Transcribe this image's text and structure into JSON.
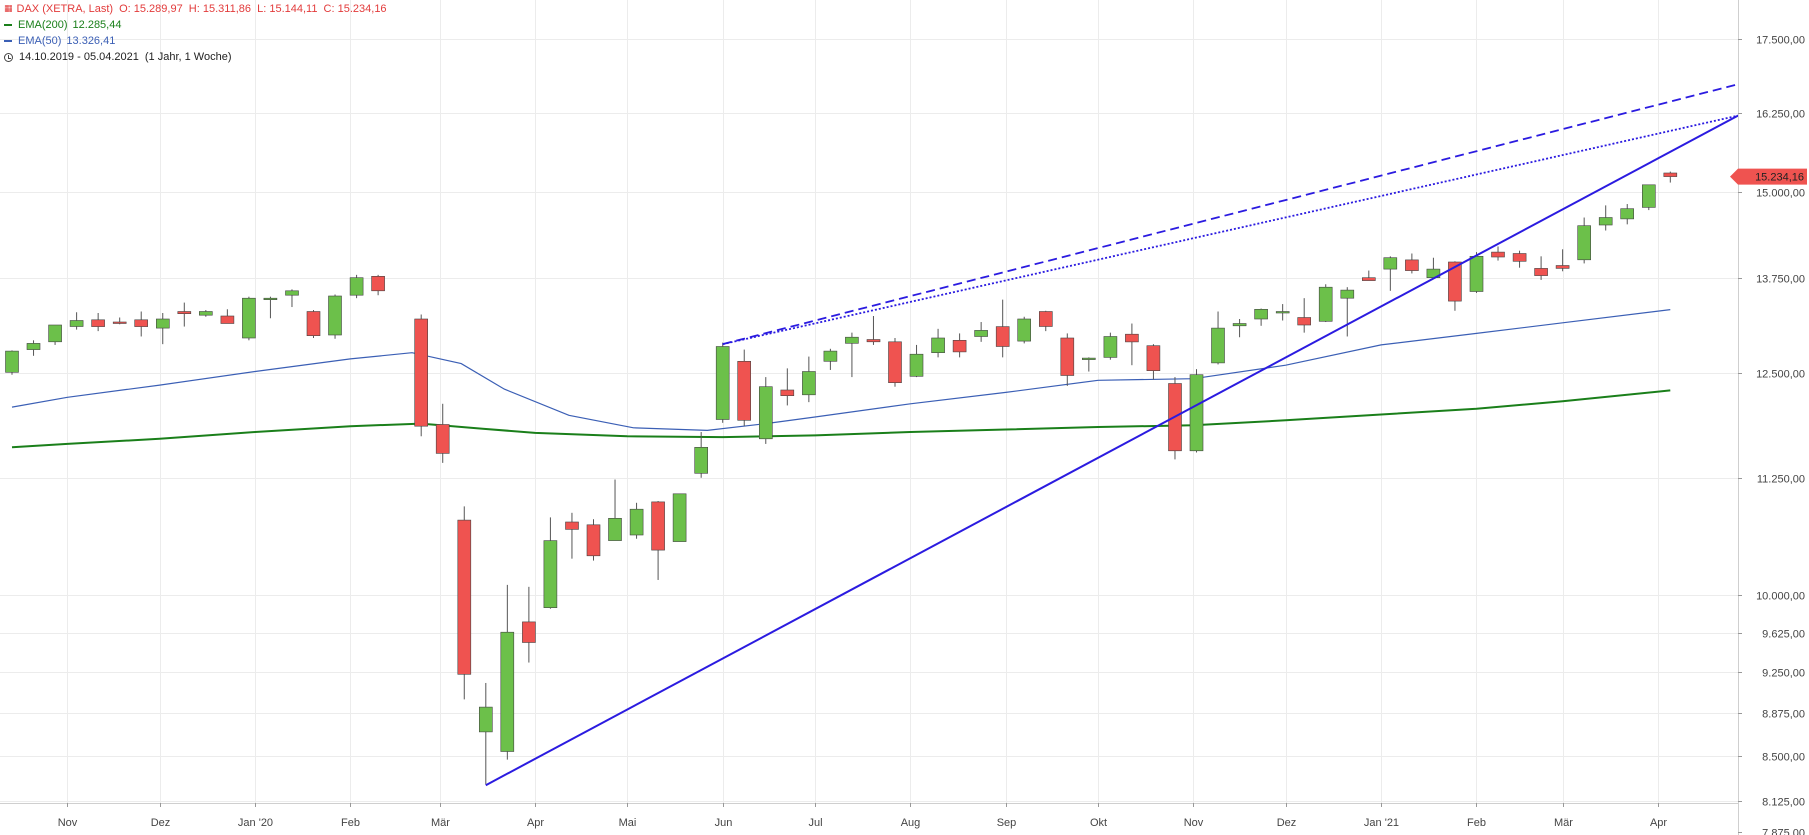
{
  "legend": {
    "main_label": "DAX (XETRA, Last)",
    "ohlc_text": "O: 15.289,97  H: 15.311,86  L: 15.144,11  C: 15.234,16",
    "ema200_label": "EMA(200)",
    "ema200_value": "12.285,44",
    "ema50_label": "EMA(50)",
    "ema50_value": "13.326,41",
    "range_text": "14.10.2019 - 05.04.2021",
    "range_note": "(1 Jahr, 1 Woche)"
  },
  "colors": {
    "up": "#6cc04a",
    "down": "#ef5350",
    "ema200": "#1a7f1a",
    "ema50": "#3b5fb5",
    "trend": "#2b1be0",
    "grid": "#ececec",
    "price_badge": "#ef5350"
  },
  "chart_data": {
    "type": "candlestick",
    "title": "DAX (XETRA, Last)",
    "price_scale": "log",
    "ylim": [
      7875,
      18200
    ],
    "y_ticks": [
      {
        "value": 17500,
        "label": "17.500,00"
      },
      {
        "value": 16250,
        "label": "16.250,00"
      },
      {
        "value": 15000,
        "label": "15.000,00"
      },
      {
        "value": 13750,
        "label": "13.750,00"
      },
      {
        "value": 12500,
        "label": "12.500,00"
      },
      {
        "value": 11250,
        "label": "11.250,00"
      },
      {
        "value": 10000,
        "label": "10.000,00"
      },
      {
        "value": 9625,
        "label": "9.625,00"
      },
      {
        "value": 9250,
        "label": "9.250,00"
      },
      {
        "value": 8875,
        "label": "8.875,00"
      },
      {
        "value": 8500,
        "label": "8.500,00"
      },
      {
        "value": 8125,
        "label": "8.125,00"
      },
      {
        "value": 7875,
        "label": "7.875,00"
      }
    ],
    "x_ticks": [
      {
        "date": "2019-11-01",
        "label": "Nov"
      },
      {
        "date": "2019-12-01",
        "label": "Dez"
      },
      {
        "date": "2020-01-01",
        "label": "Jan '20"
      },
      {
        "date": "2020-02-01",
        "label": "Feb"
      },
      {
        "date": "2020-03-01",
        "label": "Mär"
      },
      {
        "date": "2020-04-01",
        "label": "Apr"
      },
      {
        "date": "2020-05-01",
        "label": "Mai"
      },
      {
        "date": "2020-06-01",
        "label": "Jun"
      },
      {
        "date": "2020-07-01",
        "label": "Jul"
      },
      {
        "date": "2020-08-01",
        "label": "Aug"
      },
      {
        "date": "2020-09-01",
        "label": "Sep"
      },
      {
        "date": "2020-10-01",
        "label": "Okt"
      },
      {
        "date": "2020-11-01",
        "label": "Nov"
      },
      {
        "date": "2020-12-01",
        "label": "Dez"
      },
      {
        "date": "2021-01-01",
        "label": "Jan '21"
      },
      {
        "date": "2021-02-01",
        "label": "Feb"
      },
      {
        "date": "2021-03-01",
        "label": "Mär"
      },
      {
        "date": "2021-04-01",
        "label": "Apr"
      }
    ],
    "x_range": [
      "2019-10-14",
      "2021-04-27"
    ],
    "last_price_label": "15.234,16",
    "candles": [
      {
        "date": "2019-10-14",
        "o": 12510,
        "h": 12790,
        "l": 12480,
        "c": 12780
      },
      {
        "date": "2019-10-21",
        "o": 12800,
        "h": 12920,
        "l": 12720,
        "c": 12880
      },
      {
        "date": "2019-10-28",
        "o": 12900,
        "h": 13120,
        "l": 12860,
        "c": 13120
      },
      {
        "date": "2019-11-04",
        "o": 13100,
        "h": 13290,
        "l": 13060,
        "c": 13180
      },
      {
        "date": "2019-11-11",
        "o": 13190,
        "h": 13280,
        "l": 13040,
        "c": 13100
      },
      {
        "date": "2019-11-18",
        "o": 13160,
        "h": 13220,
        "l": 13130,
        "c": 13150
      },
      {
        "date": "2019-11-25",
        "o": 13190,
        "h": 13300,
        "l": 12970,
        "c": 13100
      },
      {
        "date": "2019-12-02",
        "o": 13080,
        "h": 13280,
        "l": 12870,
        "c": 13200
      },
      {
        "date": "2019-12-09",
        "o": 13300,
        "h": 13420,
        "l": 13100,
        "c": 13270
      },
      {
        "date": "2019-12-16",
        "o": 13250,
        "h": 13320,
        "l": 13230,
        "c": 13300
      },
      {
        "date": "2019-12-23",
        "o": 13240,
        "h": 13330,
        "l": 13150,
        "c": 13140
      },
      {
        "date": "2019-12-30",
        "o": 12950,
        "h": 13500,
        "l": 12920,
        "c": 13480
      },
      {
        "date": "2020-01-06",
        "o": 13470,
        "h": 13500,
        "l": 13210,
        "c": 13480
      },
      {
        "date": "2020-01-13",
        "o": 13520,
        "h": 13600,
        "l": 13360,
        "c": 13580
      },
      {
        "date": "2020-01-20",
        "o": 13300,
        "h": 13320,
        "l": 12950,
        "c": 12980
      },
      {
        "date": "2020-01-27",
        "o": 12990,
        "h": 13530,
        "l": 12940,
        "c": 13510
      },
      {
        "date": "2020-02-03",
        "o": 13520,
        "h": 13800,
        "l": 13480,
        "c": 13760
      },
      {
        "date": "2020-02-10",
        "o": 13780,
        "h": 13800,
        "l": 13520,
        "c": 13580
      },
      {
        "date": "2020-02-24",
        "o": 13200,
        "h": 13260,
        "l": 11730,
        "c": 11850
      },
      {
        "date": "2020-03-02",
        "o": 11870,
        "h": 12120,
        "l": 11420,
        "c": 11530
      },
      {
        "date": "2020-03-09",
        "o": 10780,
        "h": 10930,
        "l": 9000,
        "c": 9230
      },
      {
        "date": "2020-03-16",
        "o": 8710,
        "h": 9150,
        "l": 8260,
        "c": 8930
      },
      {
        "date": "2020-03-23",
        "o": 8540,
        "h": 10100,
        "l": 8470,
        "c": 9630
      },
      {
        "date": "2020-03-30",
        "o": 9730,
        "h": 10080,
        "l": 9340,
        "c": 9530
      },
      {
        "date": "2020-04-06",
        "o": 9870,
        "h": 10810,
        "l": 9860,
        "c": 10560
      },
      {
        "date": "2020-04-13",
        "o": 10760,
        "h": 10860,
        "l": 10370,
        "c": 10680
      },
      {
        "date": "2020-04-20",
        "o": 10730,
        "h": 10790,
        "l": 10350,
        "c": 10400
      },
      {
        "date": "2020-04-27",
        "o": 10560,
        "h": 11230,
        "l": 10570,
        "c": 10800
      },
      {
        "date": "2020-05-04",
        "o": 10620,
        "h": 10970,
        "l": 10580,
        "c": 10900
      },
      {
        "date": "2020-05-11",
        "o": 10980,
        "h": 10990,
        "l": 10150,
        "c": 10460
      },
      {
        "date": "2020-05-18",
        "o": 10550,
        "h": 11070,
        "l": 10550,
        "c": 11070
      },
      {
        "date": "2020-05-25",
        "o": 11300,
        "h": 11780,
        "l": 11250,
        "c": 11600
      },
      {
        "date": "2020-06-01",
        "o": 11930,
        "h": 12890,
        "l": 11890,
        "c": 12840
      },
      {
        "date": "2020-06-08",
        "o": 12650,
        "h": 12800,
        "l": 11850,
        "c": 11920
      },
      {
        "date": "2020-06-15",
        "o": 11700,
        "h": 12450,
        "l": 11640,
        "c": 12330
      },
      {
        "date": "2020-06-22",
        "o": 12290,
        "h": 12560,
        "l": 12100,
        "c": 12220
      },
      {
        "date": "2020-06-29",
        "o": 12230,
        "h": 12710,
        "l": 12140,
        "c": 12520
      },
      {
        "date": "2020-07-06",
        "o": 12650,
        "h": 12810,
        "l": 12540,
        "c": 12780
      },
      {
        "date": "2020-07-13",
        "o": 12880,
        "h": 13020,
        "l": 12450,
        "c": 12960
      },
      {
        "date": "2020-07-20",
        "o": 12930,
        "h": 13240,
        "l": 12860,
        "c": 12900
      },
      {
        "date": "2020-07-27",
        "o": 12900,
        "h": 12950,
        "l": 12330,
        "c": 12380
      },
      {
        "date": "2020-08-03",
        "o": 12460,
        "h": 12860,
        "l": 12450,
        "c": 12740
      },
      {
        "date": "2020-08-10",
        "o": 12760,
        "h": 13070,
        "l": 12700,
        "c": 12950
      },
      {
        "date": "2020-08-17",
        "o": 12920,
        "h": 13010,
        "l": 12700,
        "c": 12770
      },
      {
        "date": "2020-08-24",
        "o": 12970,
        "h": 13160,
        "l": 12900,
        "c": 13050
      },
      {
        "date": "2020-08-31",
        "o": 13100,
        "h": 13460,
        "l": 12700,
        "c": 12840
      },
      {
        "date": "2020-09-07",
        "o": 12910,
        "h": 13230,
        "l": 12880,
        "c": 13200
      },
      {
        "date": "2020-09-14",
        "o": 13300,
        "h": 13310,
        "l": 13040,
        "c": 13100
      },
      {
        "date": "2020-09-21",
        "o": 12950,
        "h": 13010,
        "l": 12340,
        "c": 12470
      },
      {
        "date": "2020-09-28",
        "o": 12690,
        "h": 12700,
        "l": 12520,
        "c": 12690
      },
      {
        "date": "2020-10-05",
        "o": 12700,
        "h": 13020,
        "l": 12670,
        "c": 12970
      },
      {
        "date": "2020-10-12",
        "o": 13000,
        "h": 13140,
        "l": 12600,
        "c": 12900
      },
      {
        "date": "2020-10-19",
        "o": 12850,
        "h": 12870,
        "l": 12420,
        "c": 12530
      },
      {
        "date": "2020-10-26",
        "o": 12370,
        "h": 12450,
        "l": 11460,
        "c": 11560
      },
      {
        "date": "2020-11-02",
        "o": 11560,
        "h": 12550,
        "l": 11540,
        "c": 12480
      },
      {
        "date": "2020-11-09",
        "o": 12630,
        "h": 13300,
        "l": 12610,
        "c": 13080
      },
      {
        "date": "2020-11-16",
        "o": 13110,
        "h": 13200,
        "l": 12960,
        "c": 13140
      },
      {
        "date": "2020-11-23",
        "o": 13200,
        "h": 13340,
        "l": 13110,
        "c": 13330
      },
      {
        "date": "2020-11-30",
        "o": 13290,
        "h": 13400,
        "l": 13180,
        "c": 13300
      },
      {
        "date": "2020-12-07",
        "o": 13220,
        "h": 13480,
        "l": 13020,
        "c": 13120
      },
      {
        "date": "2020-12-14",
        "o": 13170,
        "h": 13670,
        "l": 13160,
        "c": 13630
      },
      {
        "date": "2020-12-21",
        "o": 13480,
        "h": 13630,
        "l": 12970,
        "c": 13590
      },
      {
        "date": "2020-12-28",
        "o": 13760,
        "h": 13860,
        "l": 13730,
        "c": 13720
      },
      {
        "date": "2021-01-04",
        "o": 13880,
        "h": 14060,
        "l": 13580,
        "c": 14040
      },
      {
        "date": "2021-01-11",
        "o": 14010,
        "h": 14100,
        "l": 13820,
        "c": 13860
      },
      {
        "date": "2021-01-18",
        "o": 13760,
        "h": 14040,
        "l": 13760,
        "c": 13880
      },
      {
        "date": "2021-01-25",
        "o": 13980,
        "h": 13990,
        "l": 13310,
        "c": 13440
      },
      {
        "date": "2021-02-01",
        "o": 13570,
        "h": 14120,
        "l": 13550,
        "c": 14060
      },
      {
        "date": "2021-02-08",
        "o": 14120,
        "h": 14200,
        "l": 14000,
        "c": 14050
      },
      {
        "date": "2021-02-15",
        "o": 14100,
        "h": 14140,
        "l": 13900,
        "c": 13990
      },
      {
        "date": "2021-02-22",
        "o": 13890,
        "h": 14060,
        "l": 13730,
        "c": 13790
      },
      {
        "date": "2021-03-01",
        "o": 13930,
        "h": 14160,
        "l": 13850,
        "c": 13890
      },
      {
        "date": "2021-03-08",
        "o": 14010,
        "h": 14620,
        "l": 13960,
        "c": 14500
      },
      {
        "date": "2021-03-15",
        "o": 14510,
        "h": 14800,
        "l": 14430,
        "c": 14620
      },
      {
        "date": "2021-03-22",
        "o": 14600,
        "h": 14820,
        "l": 14520,
        "c": 14750
      },
      {
        "date": "2021-03-29",
        "o": 14770,
        "h": 15110,
        "l": 14730,
        "c": 15110
      },
      {
        "date": "2021-04-05",
        "o": 15290,
        "h": 15312,
        "l": 15144,
        "c": 15234
      }
    ],
    "series": [
      {
        "name": "EMA(200)",
        "points": [
          {
            "date": "2019-10-14",
            "v": 11600
          },
          {
            "date": "2019-11-01",
            "v": 11640
          },
          {
            "date": "2019-12-01",
            "v": 11700
          },
          {
            "date": "2020-01-01",
            "v": 11780
          },
          {
            "date": "2020-02-01",
            "v": 11850
          },
          {
            "date": "2020-02-24",
            "v": 11880
          },
          {
            "date": "2020-03-15",
            "v": 11820
          },
          {
            "date": "2020-04-01",
            "v": 11770
          },
          {
            "date": "2020-05-01",
            "v": 11730
          },
          {
            "date": "2020-06-01",
            "v": 11720
          },
          {
            "date": "2020-07-01",
            "v": 11740
          },
          {
            "date": "2020-08-01",
            "v": 11780
          },
          {
            "date": "2020-09-01",
            "v": 11810
          },
          {
            "date": "2020-10-01",
            "v": 11840
          },
          {
            "date": "2020-11-01",
            "v": 11860
          },
          {
            "date": "2020-12-01",
            "v": 11920
          },
          {
            "date": "2021-01-01",
            "v": 11990
          },
          {
            "date": "2021-02-01",
            "v": 12060
          },
          {
            "date": "2021-03-01",
            "v": 12150
          },
          {
            "date": "2021-04-05",
            "v": 12285
          }
        ]
      },
      {
        "name": "EMA(50)",
        "points": [
          {
            "date": "2019-10-14",
            "v": 12080
          },
          {
            "date": "2019-11-01",
            "v": 12200
          },
          {
            "date": "2019-12-01",
            "v": 12350
          },
          {
            "date": "2020-01-01",
            "v": 12520
          },
          {
            "date": "2020-02-01",
            "v": 12680
          },
          {
            "date": "2020-02-21",
            "v": 12760
          },
          {
            "date": "2020-03-08",
            "v": 12620
          },
          {
            "date": "2020-03-22",
            "v": 12300
          },
          {
            "date": "2020-04-12",
            "v": 11980
          },
          {
            "date": "2020-05-03",
            "v": 11830
          },
          {
            "date": "2020-05-27",
            "v": 11800
          },
          {
            "date": "2020-06-15",
            "v": 11880
          },
          {
            "date": "2020-07-01",
            "v": 11960
          },
          {
            "date": "2020-08-01",
            "v": 12120
          },
          {
            "date": "2020-09-01",
            "v": 12260
          },
          {
            "date": "2020-10-01",
            "v": 12410
          },
          {
            "date": "2020-11-01",
            "v": 12430
          },
          {
            "date": "2020-12-01",
            "v": 12600
          },
          {
            "date": "2021-01-01",
            "v": 12860
          },
          {
            "date": "2021-02-01",
            "v": 13010
          },
          {
            "date": "2021-03-01",
            "v": 13150
          },
          {
            "date": "2021-04-05",
            "v": 13326
          }
        ]
      }
    ],
    "trendlines": [
      {
        "style": "solid",
        "from": {
          "date": "2020-03-16",
          "v": 8255
        },
        "to": {
          "date": "2021-04-27",
          "v": 16200
        }
      },
      {
        "style": "dashed",
        "from": {
          "date": "2020-06-01",
          "v": 12870
        },
        "to": {
          "date": "2021-04-27",
          "v": 16720
        }
      },
      {
        "style": "dotted",
        "from": {
          "date": "2020-06-01",
          "v": 12870
        },
        "to": {
          "date": "2021-04-27",
          "v": 16200
        }
      }
    ]
  }
}
